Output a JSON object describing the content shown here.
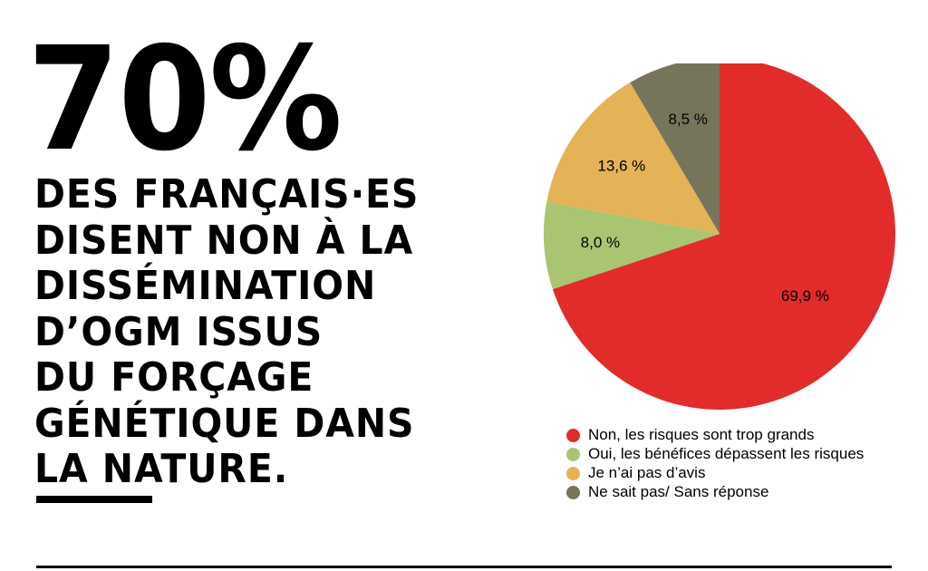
{
  "headline": {
    "big_percent": "70%",
    "lines": [
      "DES FRANÇAIS·ES",
      "DISENT NON À LA",
      "DISSÉMINATION",
      "D’OGM ISSUS",
      "DU FORÇAGE",
      "GÉNÉTIQUE DANS",
      "LA NATURE."
    ]
  },
  "chart_data": {
    "type": "pie",
    "title": "",
    "slices": [
      {
        "label": "Non, les risques sont trop grands",
        "value": 69.9,
        "value_label": "69,9 %",
        "color": "#e22b2b"
      },
      {
        "label": "Oui, les bénéfices dépassent les risques",
        "value": 8.0,
        "value_label": "8,0 %",
        "color": "#a9c571"
      },
      {
        "label": "Je n’ai pas d’avis",
        "value": 13.6,
        "value_label": "13,6 %",
        "color": "#e4b257"
      },
      {
        "label": "Ne sait pas/ Sans réponse",
        "value": 8.5,
        "value_label": "8,5 %",
        "color": "#77745c"
      }
    ],
    "start_angle": "12 o'clock",
    "direction": "clockwise",
    "legend_position": "bottom"
  }
}
